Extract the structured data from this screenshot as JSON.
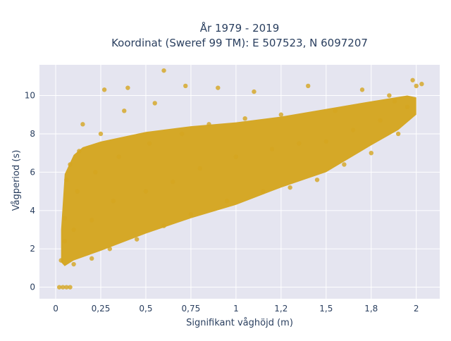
{
  "chart_data": {
    "type": "scatter",
    "title_lines": [
      "År 1979 - 2019",
      "Koordinat (Sweref 99 TM): E 507523, N 6097207"
    ],
    "xlabel": "Signifikant våghöjd (m)",
    "ylabel": "Vågperiod (s)",
    "xlim": [
      -0.09,
      2.13
    ],
    "ylim": [
      -0.6,
      11.6
    ],
    "x_ticks": [
      0,
      0.25,
      0.5,
      0.75,
      1,
      1.25,
      1.5,
      1.75,
      2
    ],
    "x_tick_labels": [
      "0",
      "0,25",
      "0,5",
      "0,75",
      "1",
      "1,2",
      "1,5",
      "1,8",
      "2"
    ],
    "y_ticks": [
      0,
      2,
      4,
      6,
      8,
      10
    ],
    "y_tick_labels": [
      "0",
      "2",
      "4",
      "6",
      "8",
      "10"
    ],
    "grid": true,
    "legend": "none",
    "colors": {
      "marker": "#d4a520",
      "plot_bg": "#e5e5f0",
      "grid": "#ffffff"
    },
    "series": [
      {
        "values": [
          [
            0.02,
            0.0
          ],
          [
            0.04,
            0.0
          ],
          [
            0.06,
            0.0
          ],
          [
            0.08,
            0.0
          ],
          [
            0.03,
            1.4
          ],
          [
            0.05,
            2.4
          ],
          [
            0.05,
            3.6
          ],
          [
            0.06,
            5.6
          ],
          [
            0.08,
            6.4
          ],
          [
            0.1,
            1.2
          ],
          [
            0.1,
            3.0
          ],
          [
            0.12,
            5.0
          ],
          [
            0.13,
            7.1
          ],
          [
            0.15,
            8.5
          ],
          [
            0.2,
            1.5
          ],
          [
            0.2,
            3.5
          ],
          [
            0.22,
            6.0
          ],
          [
            0.25,
            8.0
          ],
          [
            0.27,
            10.3
          ],
          [
            0.3,
            2.0
          ],
          [
            0.32,
            4.5
          ],
          [
            0.35,
            6.8
          ],
          [
            0.38,
            9.2
          ],
          [
            0.4,
            10.4
          ],
          [
            0.45,
            2.5
          ],
          [
            0.5,
            5.0
          ],
          [
            0.52,
            7.5
          ],
          [
            0.55,
            9.6
          ],
          [
            0.6,
            11.3
          ],
          [
            0.6,
            3.2
          ],
          [
            0.65,
            5.5
          ],
          [
            0.7,
            8.0
          ],
          [
            0.72,
            10.5
          ],
          [
            0.75,
            3.8
          ],
          [
            0.8,
            6.2
          ],
          [
            0.85,
            8.5
          ],
          [
            0.9,
            10.4
          ],
          [
            0.95,
            4.5
          ],
          [
            1.0,
            6.8
          ],
          [
            1.05,
            8.8
          ],
          [
            1.1,
            10.2
          ],
          [
            1.15,
            5.0
          ],
          [
            1.2,
            7.2
          ],
          [
            1.25,
            9.0
          ],
          [
            1.3,
            5.2
          ],
          [
            1.35,
            7.5
          ],
          [
            1.4,
            10.5
          ],
          [
            1.45,
            5.6
          ],
          [
            1.5,
            7.6
          ],
          [
            1.55,
            9.2
          ],
          [
            1.6,
            6.4
          ],
          [
            1.65,
            8.2
          ],
          [
            1.7,
            10.3
          ],
          [
            1.75,
            7.0
          ],
          [
            1.8,
            8.7
          ],
          [
            1.85,
            10.0
          ],
          [
            1.9,
            8.0
          ],
          [
            1.95,
            9.4
          ],
          [
            2.0,
            10.5
          ],
          [
            2.03,
            10.6
          ],
          [
            1.98,
            10.8
          ],
          [
            1.88,
            9.7
          ]
        ]
      }
    ]
  }
}
